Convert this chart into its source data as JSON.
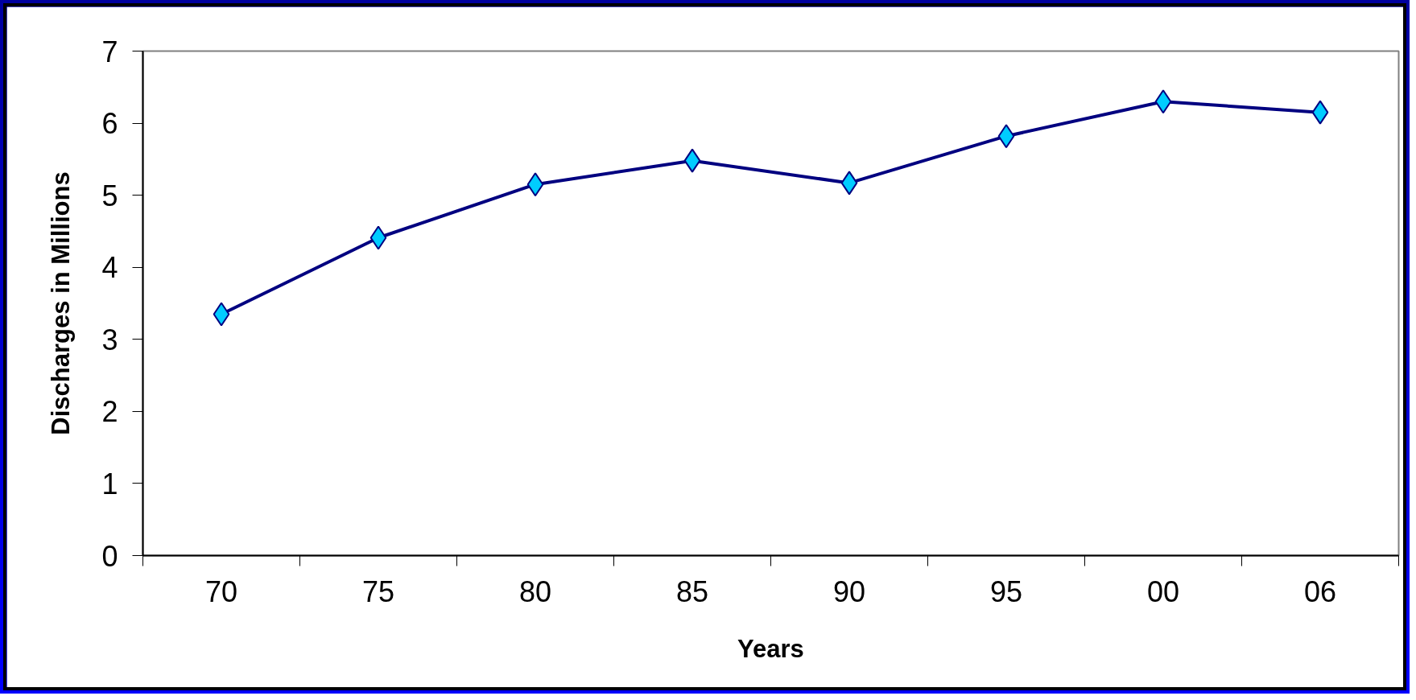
{
  "chart_data": {
    "type": "line",
    "xlabel": "Years",
    "ylabel": "Discharges in Millions",
    "categories": [
      "70",
      "75",
      "80",
      "85",
      "90",
      "95",
      "00",
      "06"
    ],
    "series": [
      {
        "color": "#000080",
        "values": [
          3.35,
          4.41,
          5.15,
          5.48,
          5.17,
          5.82,
          6.3,
          6.15
        ]
      }
    ],
    "ylim": [
      0,
      7
    ],
    "yticks": [
      0,
      1,
      2,
      3,
      4,
      5,
      6,
      7
    ],
    "grid": false,
    "marker": "diamond",
    "line_style": "solid"
  }
}
